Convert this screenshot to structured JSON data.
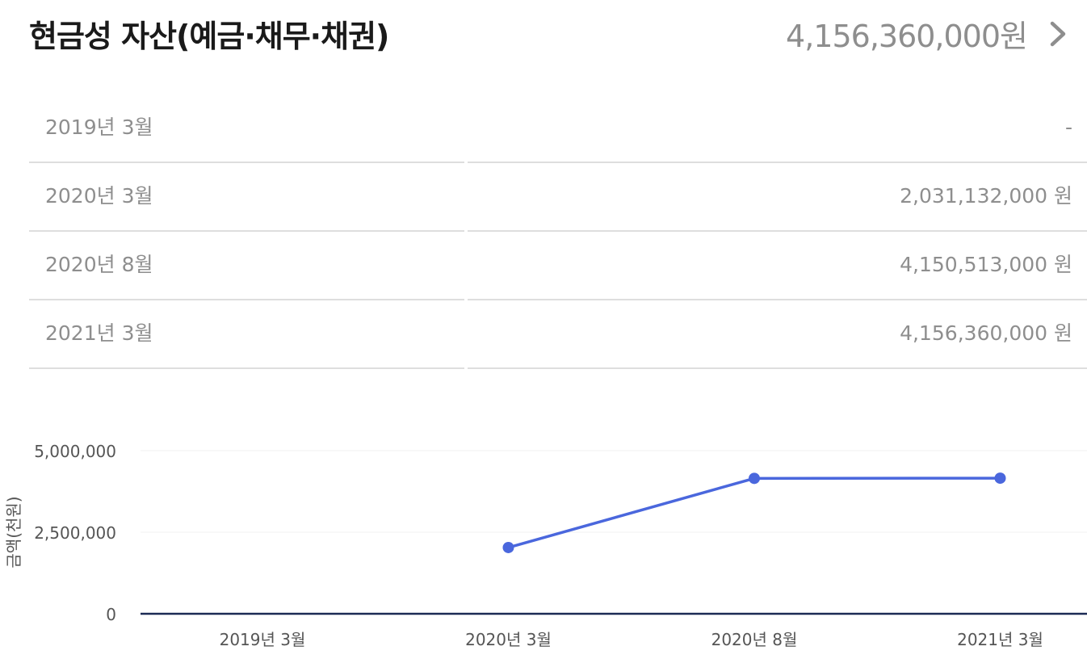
{
  "header": {
    "title": "현금성 자산(예금·채무·채권)",
    "total": "4,156,360,000원",
    "chevron_icon": "chevron-right-icon"
  },
  "table": {
    "rows": [
      {
        "label": "2019년 3월",
        "value": "-"
      },
      {
        "label": "2020년 3월",
        "value": "2,031,132,000 원"
      },
      {
        "label": "2020년 8월",
        "value": "4,150,513,000 원"
      },
      {
        "label": "2021년 3월",
        "value": "4,156,360,000 원"
      }
    ]
  },
  "chart_data": {
    "type": "line",
    "categories": [
      "2019년 3월",
      "2020년 3월",
      "2020년 8월",
      "2021년 3월"
    ],
    "series": [
      {
        "values": [
          null,
          2031132,
          4150513,
          4156360
        ],
        "color": "#4a67dd"
      }
    ],
    "ylabel": "금액(천원)",
    "ylim": [
      0,
      5000000
    ],
    "yticks": [
      0,
      2500000,
      5000000
    ],
    "ytick_labels": [
      "0",
      "2,500,000",
      "5,000,000"
    ],
    "grid": true,
    "legend": "none"
  }
}
